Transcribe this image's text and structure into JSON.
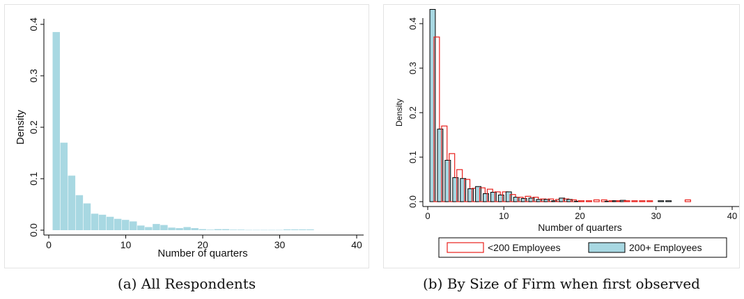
{
  "captions": {
    "a": "(a) All Respondents",
    "b": "(b) By Size of Firm when first observed"
  },
  "colors": {
    "fill_all": "#a8d8e2",
    "fill_large": "#a8d8e2",
    "outline_large": "#000000",
    "outline_small": "#e8201c"
  },
  "chart_data": [
    {
      "type": "bar",
      "title": "",
      "xlabel": "Number of quarters",
      "ylabel": "Density",
      "xlim": [
        0,
        40
      ],
      "ylim": [
        0,
        0.4
      ],
      "xticks": [
        "0",
        "10",
        "20",
        "30",
        "40"
      ],
      "yticks": [
        "0.0",
        "0.1",
        "0.2",
        "0.3",
        "0.4"
      ],
      "grid": false,
      "bin_width": 1,
      "x": [
        1,
        2,
        3,
        4,
        5,
        6,
        7,
        8,
        9,
        10,
        11,
        12,
        13,
        14,
        15,
        16,
        17,
        18,
        19,
        20,
        21,
        22,
        23,
        24,
        25,
        26,
        27,
        28,
        29,
        30,
        31,
        32,
        33,
        34
      ],
      "values": [
        0.385,
        0.17,
        0.106,
        0.068,
        0.052,
        0.032,
        0.03,
        0.026,
        0.022,
        0.02,
        0.017,
        0.009,
        0.006,
        0.012,
        0.01,
        0.005,
        0.004,
        0.006,
        0.004,
        0.002,
        0.001,
        0.002,
        0.002,
        0.001,
        0.001,
        0.0005,
        0.0005,
        0.0005,
        0.0005,
        0.0005,
        0.0015,
        0.0015,
        0.0015,
        0.0015
      ]
    },
    {
      "type": "bar",
      "title": "",
      "xlabel": "Number of quarters",
      "ylabel": "Density",
      "xlim": [
        0,
        40
      ],
      "ylim": [
        0,
        0.4
      ],
      "xticks": [
        "0",
        "10",
        "20",
        "30",
        "40"
      ],
      "yticks": [
        "0.0",
        "0.1",
        "0.2",
        "0.3",
        "0.4"
      ],
      "grid": false,
      "legend_position": "bottom",
      "x": [
        1,
        2,
        3,
        4,
        5,
        6,
        7,
        8,
        9,
        10,
        11,
        12,
        13,
        14,
        15,
        16,
        17,
        18,
        19,
        20,
        21,
        22,
        23,
        24,
        25,
        26,
        27,
        28,
        29,
        30,
        31,
        32,
        33,
        34
      ],
      "series": [
        {
          "name": "<200 Employees",
          "style": "outline",
          "values": [
            0.37,
            0.17,
            0.108,
            0.072,
            0.05,
            0.03,
            0.031,
            0.028,
            0.022,
            0.022,
            0.016,
            0.01,
            0.012,
            0.01,
            0.006,
            0.006,
            0.005,
            0.006,
            0.004,
            0.002,
            0.002,
            0.004,
            0.004,
            0.002,
            0.002,
            0.002,
            0.002,
            0.002,
            0.002,
            0,
            0,
            0,
            0,
            0.004
          ]
        },
        {
          "name": "200+ Employees",
          "style": "filled",
          "values": [
            0.432,
            0.163,
            0.093,
            0.054,
            0.052,
            0.029,
            0.034,
            0.018,
            0.021,
            0.015,
            0.022,
            0.01,
            0.007,
            0.008,
            0.005,
            0.005,
            0.002,
            0.008,
            0.005,
            0.001,
            0,
            0,
            0,
            0.001,
            0.002,
            0.003,
            0,
            0,
            0,
            0,
            0.002,
            0.002,
            0,
            0
          ]
        }
      ]
    }
  ]
}
